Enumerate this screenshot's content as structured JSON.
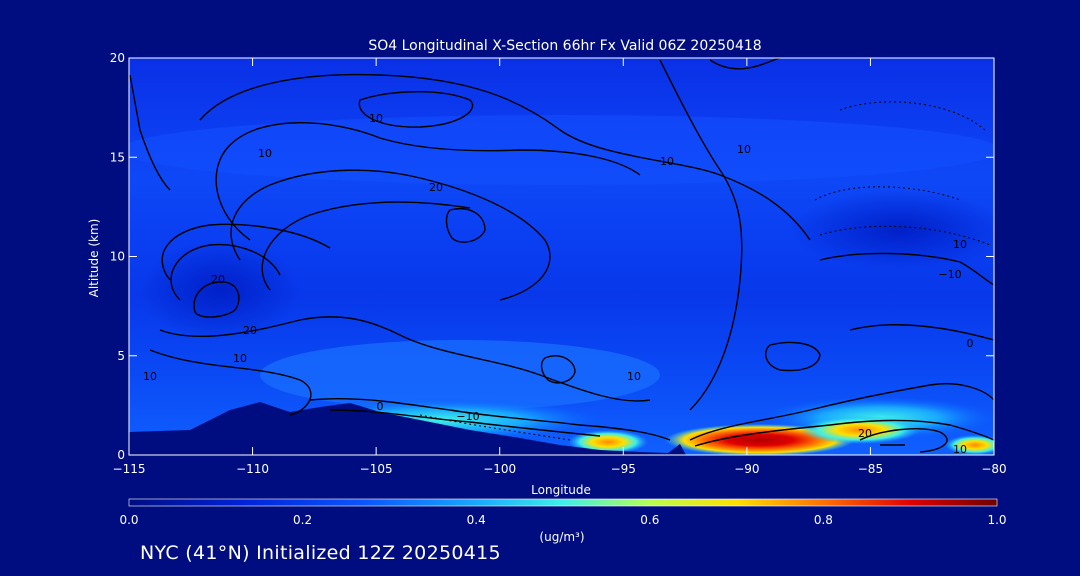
{
  "chart_data": {
    "type": "heatmap",
    "title": "SO4 Longitudinal X-Section 66hr  Fx Valid 06Z 20250418",
    "xlabel": "Longitude",
    "ylabel": "Altitude (km)",
    "xlim": [
      -115,
      -80
    ],
    "ylim": [
      0,
      20
    ],
    "xticks": [
      -115,
      -110,
      -105,
      -100,
      -95,
      -90,
      -85,
      -80
    ],
    "xtick_labels": [
      "−115",
      "−110",
      "−105",
      "−100",
      "−95",
      "−90",
      "−85",
      "−80"
    ],
    "yticks": [
      0,
      5,
      10,
      15,
      20
    ],
    "ytick_labels": [
      "0",
      "5",
      "10",
      "15",
      "20"
    ],
    "colorbar": {
      "label": "(ug/m³)",
      "range": [
        0.0,
        1.0
      ],
      "ticks": [
        "0.0",
        "0.2",
        "0.4",
        "0.6",
        "0.8",
        "1.0"
      ],
      "colors": [
        "#000d80",
        "#0022d8",
        "#0a55ff",
        "#18a8ff",
        "#3ef0e8",
        "#b8ff50",
        "#ffe000",
        "#ff7000",
        "#e00000",
        "#700000"
      ]
    },
    "contour_labels": [
      "10",
      "10",
      "10",
      "10",
      "20",
      "20",
      "20",
      "10",
      "10",
      "0",
      "−10",
      "10",
      "20",
      "10",
      "0",
      "10",
      "−10"
    ],
    "hotspots": [
      {
        "lon": -90.0,
        "alt": 0.7,
        "value": 0.9
      },
      {
        "lon": -94.8,
        "alt": 0.5,
        "value": 0.75
      },
      {
        "lon": -85.0,
        "alt": 1.3,
        "value": 0.6
      },
      {
        "lon": -80.5,
        "alt": 0.3,
        "value": 0.55
      }
    ]
  },
  "footer": "NYC (41°N) Initialized 12Z 20250415"
}
